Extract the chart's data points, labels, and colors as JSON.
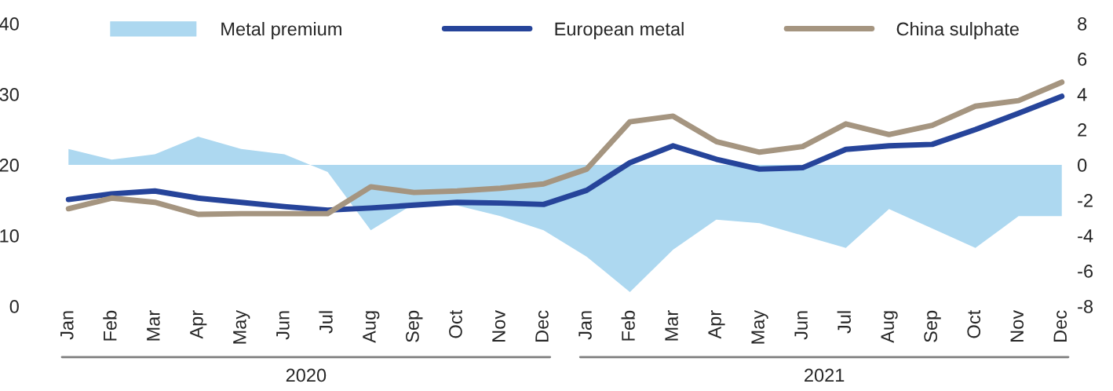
{
  "chart_data": {
    "type": "line",
    "categories": [
      "Jan",
      "Feb",
      "Mar",
      "Apr",
      "May",
      "Jun",
      "Jul",
      "Aug",
      "Sep",
      "Oct",
      "Nov",
      "Dec",
      "Jan",
      "Feb",
      "Mar",
      "Apr",
      "May",
      "Jun",
      "Jul",
      "Aug",
      "Sep",
      "Oct",
      "Nov",
      "Dec"
    ],
    "series": [
      {
        "name": "Metal premium",
        "type": "area",
        "axis": "y2",
        "color": "#add8f0",
        "values": [
          0.9,
          0.3,
          0.6,
          1.6,
          0.9,
          0.6,
          -0.4,
          -3.7,
          -2.2,
          -2.3,
          -2.9,
          -3.7,
          -5.2,
          -7.2,
          -4.8,
          -3.1,
          -3.3,
          -4.0,
          -4.7,
          -2.5,
          -3.6,
          -4.7,
          -2.9,
          -2.9
        ]
      },
      {
        "name": "European metal",
        "color": "#26449a",
        "values": [
          15.1,
          15.9,
          16.3,
          15.3,
          14.7,
          14.1,
          13.6,
          13.9,
          14.3,
          14.7,
          14.6,
          14.4,
          16.4,
          20.3,
          22.7,
          20.8,
          19.4,
          19.6,
          22.2,
          22.7,
          22.9,
          25.0,
          27.3,
          29.7
        ]
      },
      {
        "name": "China sulphate",
        "color": "#a59580",
        "values": [
          13.8,
          15.3,
          14.7,
          13.0,
          13.1,
          13.1,
          13.1,
          16.9,
          16.1,
          16.3,
          16.7,
          17.3,
          19.4,
          26.1,
          26.9,
          23.3,
          21.8,
          22.6,
          25.8,
          24.3,
          25.6,
          28.3,
          29.1,
          31.7
        ]
      }
    ],
    "ylim": [
      0,
      40
    ],
    "yticks": [
      0,
      10,
      20,
      30,
      40
    ],
    "y2lim": [
      -8,
      8
    ],
    "y2ticks": [
      -8,
      -6,
      -4,
      -2,
      0,
      2,
      4,
      6,
      8
    ],
    "annotations": [
      "2020",
      "2021"
    ],
    "legend": "top",
    "grid": false,
    "line_style": "solid",
    "marker": "none"
  }
}
